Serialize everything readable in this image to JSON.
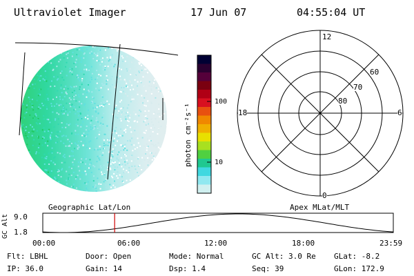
{
  "header": {
    "title": "Ultraviolet Imager",
    "date": "17 Jun 07",
    "time": "04:55:04 UT"
  },
  "colorbar": {
    "label": "photon cm⁻²s⁻¹",
    "ticks": [
      "100",
      "10"
    ],
    "colors": [
      "#000033",
      "#2a0030",
      "#55003a",
      "#7a0010",
      "#b00015",
      "#d81020",
      "#e85010",
      "#f08800",
      "#f0b000",
      "#e8e000",
      "#a8e020",
      "#50d040",
      "#20c890",
      "#40d8e0",
      "#90e8f0",
      "#d0f0f0"
    ]
  },
  "polar": {
    "mlt_labels": {
      "top": "12",
      "left": "18",
      "right": "6",
      "bottom": "0"
    },
    "lat_labels": [
      "60",
      "70",
      "80"
    ]
  },
  "captions": {
    "left": "Geographic Lat/Lon",
    "right": "Apex MLat/MLT"
  },
  "altplot": {
    "ylabel": "GC Alt",
    "ymax": "9.0",
    "ymin": "1.8",
    "xticks": [
      "00:00",
      "06:00",
      "12:00",
      "18:00",
      "23:59"
    ],
    "cursor_hour": 4.92,
    "cursor_color": "#cc0000"
  },
  "info": {
    "row1": {
      "flt": "Flt: LBHL",
      "door": "Door: Open",
      "mode": "Mode: Normal",
      "gcalt": "GC Alt: 3.0 Re",
      "glat": "GLat:  -8.2"
    },
    "row2": {
      "ip": "IP: 36.0",
      "gain": "Gain: 14",
      "dsp": "Dsp:    1.4",
      "seq": "Seq: 39",
      "glon": "GLon: 172.9"
    }
  }
}
